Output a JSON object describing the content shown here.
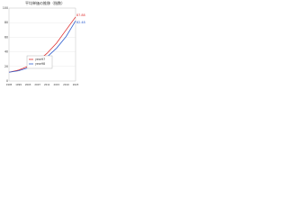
{
  "chart_data": {
    "type": "line",
    "title": "平均単価の推移（指数）",
    "categories": [
      "1995",
      "1999",
      "2003",
      "2007",
      "2011",
      "2015",
      "2019",
      "2023"
    ],
    "series": [
      {
        "name": "year97",
        "color": "#e03030",
        "values": [
          12,
          15,
          20,
          27,
          38,
          52,
          70,
          87.88
        ]
      },
      {
        "name": "year98",
        "color": "#3060d0",
        "values": [
          12,
          14,
          18,
          24,
          33,
          45,
          61,
          82.48
        ]
      }
    ],
    "ylim": [
      0,
      100
    ],
    "yticks": [
      0,
      20,
      40,
      60,
      80,
      100
    ],
    "grid": true,
    "legend": "bottom"
  }
}
